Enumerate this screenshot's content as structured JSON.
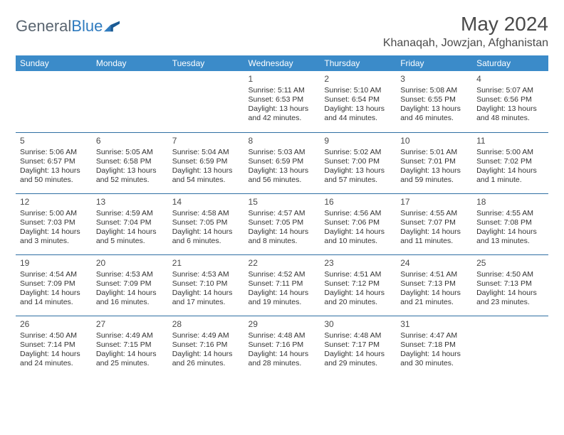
{
  "brand": {
    "part1": "General",
    "part2": "Blue"
  },
  "title": "May 2024",
  "location": "Khanaqah, Jowzjan, Afghanistan",
  "header_bg": "#3b8bc9",
  "header_fg": "#ffffff",
  "rule_color": "#2f6fa3",
  "text_color": "#333333",
  "day_headers": [
    "Sunday",
    "Monday",
    "Tuesday",
    "Wednesday",
    "Thursday",
    "Friday",
    "Saturday"
  ],
  "weeks": [
    [
      null,
      null,
      null,
      {
        "n": "1",
        "sr": "Sunrise: 5:11 AM",
        "ss": "Sunset: 6:53 PM",
        "dl": "Daylight: 13 hours and 42 minutes."
      },
      {
        "n": "2",
        "sr": "Sunrise: 5:10 AM",
        "ss": "Sunset: 6:54 PM",
        "dl": "Daylight: 13 hours and 44 minutes."
      },
      {
        "n": "3",
        "sr": "Sunrise: 5:08 AM",
        "ss": "Sunset: 6:55 PM",
        "dl": "Daylight: 13 hours and 46 minutes."
      },
      {
        "n": "4",
        "sr": "Sunrise: 5:07 AM",
        "ss": "Sunset: 6:56 PM",
        "dl": "Daylight: 13 hours and 48 minutes."
      }
    ],
    [
      {
        "n": "5",
        "sr": "Sunrise: 5:06 AM",
        "ss": "Sunset: 6:57 PM",
        "dl": "Daylight: 13 hours and 50 minutes."
      },
      {
        "n": "6",
        "sr": "Sunrise: 5:05 AM",
        "ss": "Sunset: 6:58 PM",
        "dl": "Daylight: 13 hours and 52 minutes."
      },
      {
        "n": "7",
        "sr": "Sunrise: 5:04 AM",
        "ss": "Sunset: 6:59 PM",
        "dl": "Daylight: 13 hours and 54 minutes."
      },
      {
        "n": "8",
        "sr": "Sunrise: 5:03 AM",
        "ss": "Sunset: 6:59 PM",
        "dl": "Daylight: 13 hours and 56 minutes."
      },
      {
        "n": "9",
        "sr": "Sunrise: 5:02 AM",
        "ss": "Sunset: 7:00 PM",
        "dl": "Daylight: 13 hours and 57 minutes."
      },
      {
        "n": "10",
        "sr": "Sunrise: 5:01 AM",
        "ss": "Sunset: 7:01 PM",
        "dl": "Daylight: 13 hours and 59 minutes."
      },
      {
        "n": "11",
        "sr": "Sunrise: 5:00 AM",
        "ss": "Sunset: 7:02 PM",
        "dl": "Daylight: 14 hours and 1 minute."
      }
    ],
    [
      {
        "n": "12",
        "sr": "Sunrise: 5:00 AM",
        "ss": "Sunset: 7:03 PM",
        "dl": "Daylight: 14 hours and 3 minutes."
      },
      {
        "n": "13",
        "sr": "Sunrise: 4:59 AM",
        "ss": "Sunset: 7:04 PM",
        "dl": "Daylight: 14 hours and 5 minutes."
      },
      {
        "n": "14",
        "sr": "Sunrise: 4:58 AM",
        "ss": "Sunset: 7:05 PM",
        "dl": "Daylight: 14 hours and 6 minutes."
      },
      {
        "n": "15",
        "sr": "Sunrise: 4:57 AM",
        "ss": "Sunset: 7:05 PM",
        "dl": "Daylight: 14 hours and 8 minutes."
      },
      {
        "n": "16",
        "sr": "Sunrise: 4:56 AM",
        "ss": "Sunset: 7:06 PM",
        "dl": "Daylight: 14 hours and 10 minutes."
      },
      {
        "n": "17",
        "sr": "Sunrise: 4:55 AM",
        "ss": "Sunset: 7:07 PM",
        "dl": "Daylight: 14 hours and 11 minutes."
      },
      {
        "n": "18",
        "sr": "Sunrise: 4:55 AM",
        "ss": "Sunset: 7:08 PM",
        "dl": "Daylight: 14 hours and 13 minutes."
      }
    ],
    [
      {
        "n": "19",
        "sr": "Sunrise: 4:54 AM",
        "ss": "Sunset: 7:09 PM",
        "dl": "Daylight: 14 hours and 14 minutes."
      },
      {
        "n": "20",
        "sr": "Sunrise: 4:53 AM",
        "ss": "Sunset: 7:09 PM",
        "dl": "Daylight: 14 hours and 16 minutes."
      },
      {
        "n": "21",
        "sr": "Sunrise: 4:53 AM",
        "ss": "Sunset: 7:10 PM",
        "dl": "Daylight: 14 hours and 17 minutes."
      },
      {
        "n": "22",
        "sr": "Sunrise: 4:52 AM",
        "ss": "Sunset: 7:11 PM",
        "dl": "Daylight: 14 hours and 19 minutes."
      },
      {
        "n": "23",
        "sr": "Sunrise: 4:51 AM",
        "ss": "Sunset: 7:12 PM",
        "dl": "Daylight: 14 hours and 20 minutes."
      },
      {
        "n": "24",
        "sr": "Sunrise: 4:51 AM",
        "ss": "Sunset: 7:13 PM",
        "dl": "Daylight: 14 hours and 21 minutes."
      },
      {
        "n": "25",
        "sr": "Sunrise: 4:50 AM",
        "ss": "Sunset: 7:13 PM",
        "dl": "Daylight: 14 hours and 23 minutes."
      }
    ],
    [
      {
        "n": "26",
        "sr": "Sunrise: 4:50 AM",
        "ss": "Sunset: 7:14 PM",
        "dl": "Daylight: 14 hours and 24 minutes."
      },
      {
        "n": "27",
        "sr": "Sunrise: 4:49 AM",
        "ss": "Sunset: 7:15 PM",
        "dl": "Daylight: 14 hours and 25 minutes."
      },
      {
        "n": "28",
        "sr": "Sunrise: 4:49 AM",
        "ss": "Sunset: 7:16 PM",
        "dl": "Daylight: 14 hours and 26 minutes."
      },
      {
        "n": "29",
        "sr": "Sunrise: 4:48 AM",
        "ss": "Sunset: 7:16 PM",
        "dl": "Daylight: 14 hours and 28 minutes."
      },
      {
        "n": "30",
        "sr": "Sunrise: 4:48 AM",
        "ss": "Sunset: 7:17 PM",
        "dl": "Daylight: 14 hours and 29 minutes."
      },
      {
        "n": "31",
        "sr": "Sunrise: 4:47 AM",
        "ss": "Sunset: 7:18 PM",
        "dl": "Daylight: 14 hours and 30 minutes."
      },
      null
    ]
  ]
}
